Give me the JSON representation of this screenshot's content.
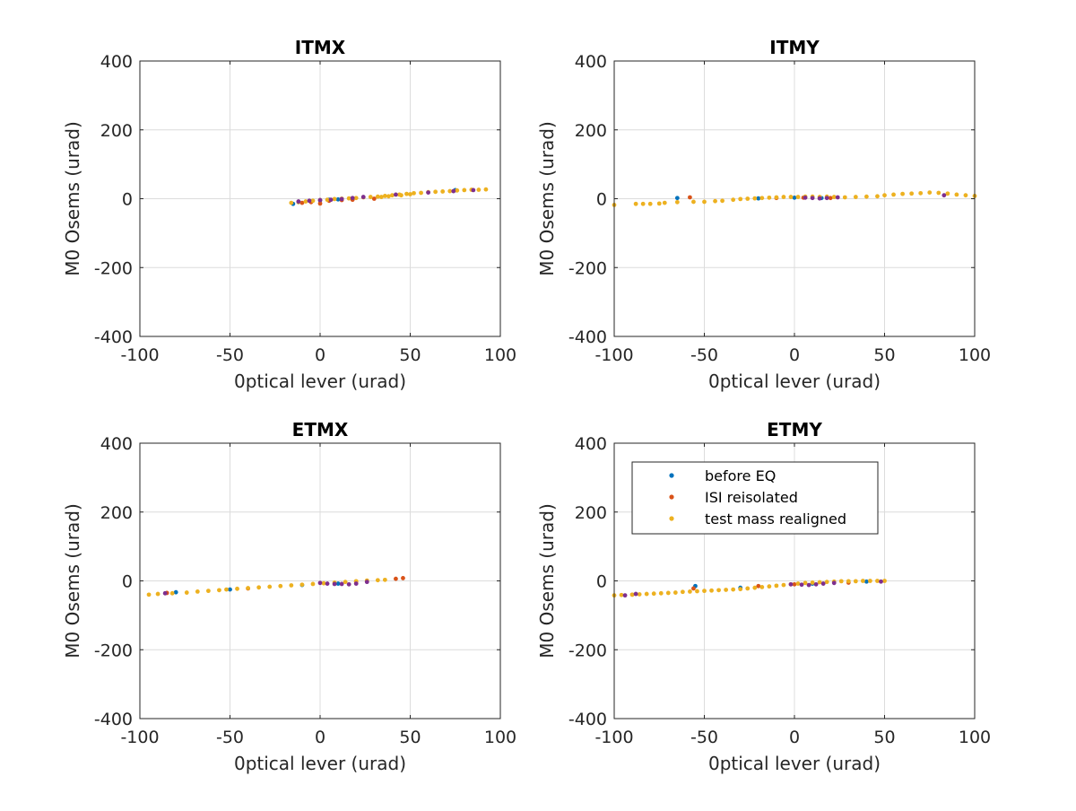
{
  "colors": {
    "before_eq": "#0072BD",
    "isi_reisolated": "#D95319",
    "test_mass_realigned": "#EDB120",
    "extra": "#7E2F8E",
    "grid": "#dcdcdc",
    "axis": "#262626"
  },
  "chart_data": [
    {
      "type": "scatter",
      "title": "ITMX",
      "xlabel": "0ptical lever (urad)",
      "ylabel": "M0 Osems (urad)",
      "xlim": [
        -100,
        100
      ],
      "ylim": [
        -400,
        400
      ],
      "xticks": [
        -100,
        -50,
        0,
        50,
        100
      ],
      "yticks": [
        -400,
        -200,
        0,
        200,
        400
      ],
      "grid": true,
      "series": [
        {
          "color": "#0072BD",
          "points": [
            [
              -15,
              -15
            ],
            [
              -12,
              -10
            ],
            [
              -5,
              -8
            ],
            [
              0,
              -5
            ],
            [
              5,
              -3
            ],
            [
              10,
              -2
            ],
            [
              75,
              25
            ]
          ]
        },
        {
          "color": "#D95319",
          "points": [
            [
              -10,
              -12
            ],
            [
              -5,
              -10
            ],
            [
              0,
              -14
            ],
            [
              5,
              -6
            ],
            [
              12,
              -4
            ],
            [
              18,
              -3
            ],
            [
              30,
              0
            ]
          ]
        },
        {
          "color": "#EDB120",
          "points": [
            [
              -16,
              -12
            ],
            [
              -12,
              -10
            ],
            [
              -8,
              -8
            ],
            [
              -4,
              -6
            ],
            [
              0,
              -4
            ],
            [
              4,
              -3
            ],
            [
              8,
              -1
            ],
            [
              12,
              0
            ],
            [
              16,
              1
            ],
            [
              20,
              2
            ],
            [
              24,
              4
            ],
            [
              28,
              5
            ],
            [
              32,
              6
            ],
            [
              36,
              8
            ],
            [
              40,
              10
            ],
            [
              44,
              12
            ],
            [
              48,
              14
            ],
            [
              52,
              16
            ],
            [
              56,
              17
            ],
            [
              60,
              19
            ],
            [
              64,
              20
            ],
            [
              68,
              21
            ],
            [
              72,
              22
            ],
            [
              76,
              24
            ],
            [
              80,
              25
            ],
            [
              84,
              26
            ],
            [
              88,
              26
            ],
            [
              92,
              27
            ],
            [
              34,
              5
            ],
            [
              38,
              7
            ],
            [
              45,
              10
            ],
            [
              50,
              13
            ]
          ]
        },
        {
          "color": "#7E2F8E",
          "points": [
            [
              -12,
              -8
            ],
            [
              -6,
              -6
            ],
            [
              0,
              -4
            ],
            [
              6,
              -3
            ],
            [
              12,
              -1
            ],
            [
              18,
              2
            ],
            [
              24,
              5
            ],
            [
              42,
              12
            ],
            [
              60,
              18
            ],
            [
              74,
              22
            ],
            [
              85,
              25
            ]
          ]
        }
      ]
    },
    {
      "type": "scatter",
      "title": "ITMY",
      "xlabel": "0ptical lever (urad)",
      "ylabel": "M0 Osems (urad)",
      "xlim": [
        -100,
        100
      ],
      "ylim": [
        -400,
        400
      ],
      "xticks": [
        -100,
        -50,
        0,
        50,
        100
      ],
      "yticks": [
        -400,
        -200,
        0,
        200,
        400
      ],
      "grid": true,
      "series": [
        {
          "color": "#0072BD",
          "points": [
            [
              -65,
              2
            ],
            [
              -20,
              1
            ],
            [
              0,
              3
            ],
            [
              15,
              2
            ]
          ]
        },
        {
          "color": "#D95319",
          "points": [
            [
              -58,
              4
            ],
            [
              -10,
              2
            ],
            [
              5,
              3
            ],
            [
              20,
              2
            ]
          ]
        },
        {
          "color": "#EDB120",
          "points": [
            [
              -100,
              -18
            ],
            [
              -88,
              -15
            ],
            [
              -84,
              -15
            ],
            [
              -80,
              -15
            ],
            [
              -75,
              -14
            ],
            [
              -72,
              -12
            ],
            [
              -65,
              -10
            ],
            [
              -56,
              -9
            ],
            [
              -50,
              -9
            ],
            [
              -44,
              -7
            ],
            [
              -40,
              -6
            ],
            [
              -34,
              -3
            ],
            [
              -30,
              -1
            ],
            [
              -26,
              0
            ],
            [
              -22,
              1
            ],
            [
              -18,
              2
            ],
            [
              -14,
              3
            ],
            [
              -10,
              4
            ],
            [
              -6,
              5
            ],
            [
              -2,
              5
            ],
            [
              2,
              5
            ],
            [
              6,
              6
            ],
            [
              10,
              6
            ],
            [
              14,
              5
            ],
            [
              18,
              6
            ],
            [
              22,
              5
            ],
            [
              28,
              4
            ],
            [
              34,
              5
            ],
            [
              40,
              6
            ],
            [
              46,
              7
            ],
            [
              50,
              10
            ],
            [
              55,
              12
            ],
            [
              60,
              14
            ],
            [
              65,
              15
            ],
            [
              70,
              16
            ],
            [
              75,
              18
            ],
            [
              80,
              17
            ],
            [
              85,
              15
            ],
            [
              90,
              12
            ],
            [
              95,
              10
            ],
            [
              100,
              8
            ]
          ]
        },
        {
          "color": "#7E2F8E",
          "points": [
            [
              6,
              3
            ],
            [
              10,
              2
            ],
            [
              14,
              1
            ],
            [
              18,
              2
            ],
            [
              24,
              4
            ],
            [
              83,
              10
            ]
          ]
        }
      ]
    },
    {
      "type": "scatter",
      "title": "ETMX",
      "xlabel": "0ptical lever (urad)",
      "ylabel": "M0 Osems (urad)",
      "xlim": [
        -100,
        100
      ],
      "ylim": [
        -400,
        400
      ],
      "xticks": [
        -100,
        -50,
        0,
        50,
        100
      ],
      "yticks": [
        -400,
        -200,
        0,
        200,
        400
      ],
      "grid": true,
      "series": [
        {
          "color": "#0072BD",
          "points": [
            [
              -80,
              -33
            ],
            [
              -50,
              -25
            ],
            [
              -10,
              -12
            ],
            [
              10,
              -8
            ]
          ]
        },
        {
          "color": "#D95319",
          "points": [
            [
              -85,
              -35
            ],
            [
              -40,
              -22
            ],
            [
              20,
              -2
            ],
            [
              42,
              6
            ],
            [
              46,
              8
            ]
          ]
        },
        {
          "color": "#EDB120",
          "points": [
            [
              -95,
              -40
            ],
            [
              -90,
              -38
            ],
            [
              -82,
              -36
            ],
            [
              -74,
              -34
            ],
            [
              -68,
              -31
            ],
            [
              -62,
              -29
            ],
            [
              -56,
              -27
            ],
            [
              -52,
              -25
            ],
            [
              -46,
              -23
            ],
            [
              -40,
              -21
            ],
            [
              -34,
              -19
            ],
            [
              -28,
              -17
            ],
            [
              -22,
              -15
            ],
            [
              -16,
              -13
            ],
            [
              -10,
              -11
            ],
            [
              -4,
              -9
            ],
            [
              2,
              -7
            ],
            [
              8,
              -5
            ],
            [
              14,
              -3
            ],
            [
              20,
              -1
            ],
            [
              26,
              1
            ],
            [
              32,
              2
            ],
            [
              36,
              3
            ]
          ]
        },
        {
          "color": "#7E2F8E",
          "points": [
            [
              -86,
              -36
            ],
            [
              0,
              -6
            ],
            [
              4,
              -8
            ],
            [
              8,
              -9
            ],
            [
              12,
              -9
            ],
            [
              16,
              -10
            ],
            [
              20,
              -8
            ],
            [
              26,
              -3
            ]
          ]
        }
      ]
    },
    {
      "type": "scatter",
      "title": "ETMY",
      "xlabel": "0ptical lever (urad)",
      "ylabel": "M0 Osems (urad)",
      "xlim": [
        -100,
        100
      ],
      "ylim": [
        -400,
        400
      ],
      "xticks": [
        -100,
        -50,
        0,
        50,
        100
      ],
      "yticks": [
        -400,
        -200,
        0,
        200,
        400
      ],
      "grid": true,
      "legend": {
        "location": "top-left",
        "entries": [
          "before EQ",
          "ISI reisolated",
          "test mass realigned"
        ]
      },
      "series": [
        {
          "color": "#0072BD",
          "points": [
            [
              -55,
              -15
            ],
            [
              -30,
              -20
            ],
            [
              10,
              -8
            ],
            [
              40,
              -2
            ]
          ]
        },
        {
          "color": "#D95319",
          "points": [
            [
              -90,
              -40
            ],
            [
              -56,
              -22
            ],
            [
              -20,
              -15
            ],
            [
              0,
              -10
            ],
            [
              30,
              -5
            ]
          ]
        },
        {
          "color": "#EDB120",
          "points": [
            [
              -100,
              -42
            ],
            [
              -96,
              -41
            ],
            [
              -90,
              -40
            ],
            [
              -86,
              -39
            ],
            [
              -82,
              -38
            ],
            [
              -78,
              -37
            ],
            [
              -74,
              -36
            ],
            [
              -70,
              -35
            ],
            [
              -66,
              -34
            ],
            [
              -62,
              -32
            ],
            [
              -58,
              -31
            ],
            [
              -54,
              -30
            ],
            [
              -50,
              -29
            ],
            [
              -46,
              -28
            ],
            [
              -42,
              -27
            ],
            [
              -38,
              -26
            ],
            [
              -34,
              -25
            ],
            [
              -30,
              -24
            ],
            [
              -26,
              -22
            ],
            [
              -22,
              -20
            ],
            [
              -18,
              -18
            ],
            [
              -14,
              -16
            ],
            [
              -10,
              -14
            ],
            [
              -6,
              -12
            ],
            [
              -2,
              -10
            ],
            [
              2,
              -8
            ],
            [
              6,
              -6
            ],
            [
              10,
              -5
            ],
            [
              14,
              -4
            ],
            [
              18,
              -3
            ],
            [
              22,
              -2
            ],
            [
              26,
              -1
            ],
            [
              30,
              -1
            ],
            [
              34,
              -1
            ],
            [
              38,
              0
            ],
            [
              42,
              0
            ],
            [
              46,
              0
            ],
            [
              50,
              0
            ]
          ]
        },
        {
          "color": "#7E2F8E",
          "points": [
            [
              -94,
              -42
            ],
            [
              -88,
              -38
            ],
            [
              -2,
              -10
            ],
            [
              4,
              -11
            ],
            [
              8,
              -12
            ],
            [
              12,
              -10
            ],
            [
              16,
              -8
            ],
            [
              22,
              -6
            ],
            [
              48,
              -2
            ]
          ]
        }
      ]
    }
  ]
}
